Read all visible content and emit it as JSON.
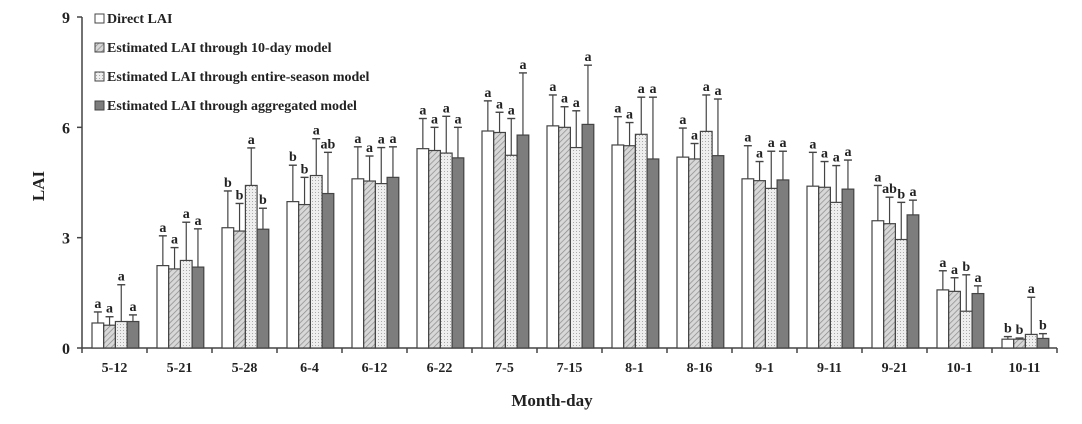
{
  "chart_data": {
    "type": "bar",
    "title": "",
    "xlabel": "Month-day",
    "ylabel": "LAI",
    "ylim": [
      0,
      9
    ],
    "yticks": [
      "0",
      "3",
      "6",
      "9"
    ],
    "grid": false,
    "legend_position": "top-left",
    "categories": [
      "5-12",
      "5-21",
      "5-28",
      "6-4",
      "6-12",
      "6-22",
      "7-5",
      "7-15",
      "8-1",
      "8-16",
      "9-1",
      "9-11",
      "9-21",
      "10-1",
      "10-11"
    ],
    "series": [
      {
        "name": "Direct LAI",
        "color": "#ffffff",
        "values": [
          0.68,
          2.24,
          3.27,
          3.98,
          4.6,
          5.42,
          5.9,
          6.04,
          5.52,
          5.19,
          4.6,
          4.4,
          3.46,
          1.58,
          0.24
        ],
        "error_upper": [
          0.98,
          3.05,
          4.27,
          4.97,
          5.47,
          6.24,
          6.72,
          6.88,
          6.29,
          5.98,
          5.5,
          5.32,
          4.42,
          2.1,
          0.31
        ],
        "letters": [
          "a",
          "a",
          "b",
          "b",
          "a",
          "a",
          "a",
          "a",
          "a",
          "a",
          "a",
          "a",
          "a",
          "a",
          "b"
        ]
      },
      {
        "name": "Estimated LAI through 10-day model",
        "color": "#c8c8c8",
        "values": [
          0.62,
          2.15,
          3.18,
          3.9,
          4.54,
          5.37,
          5.86,
          6.0,
          5.5,
          5.14,
          4.55,
          4.37,
          3.38,
          1.54,
          0.24
        ],
        "error_upper": [
          0.85,
          2.73,
          3.93,
          4.64,
          5.22,
          6.0,
          6.41,
          6.56,
          6.13,
          5.56,
          5.07,
          5.07,
          4.1,
          1.91,
          0.27
        ],
        "letters": [
          "a",
          "a",
          "b",
          "b",
          "a",
          "a",
          "a",
          "a",
          "a",
          "a",
          "a",
          "a",
          "ab",
          "a",
          "b"
        ]
      },
      {
        "name": "Estimated LAI through entire-season model",
        "color": "#e6e6e6",
        "values": [
          0.72,
          2.38,
          4.42,
          4.69,
          4.47,
          5.3,
          5.24,
          5.45,
          5.81,
          5.89,
          4.34,
          3.96,
          2.95,
          1.0,
          0.37
        ],
        "error_upper": [
          1.72,
          3.42,
          5.44,
          5.69,
          5.45,
          6.3,
          6.24,
          6.45,
          6.82,
          6.88,
          5.35,
          4.96,
          3.96,
          1.99,
          1.38
        ],
        "letters": [
          "a",
          "a",
          "a",
          "a",
          "a",
          "a",
          "a",
          "a",
          "a",
          "a",
          "a",
          "a",
          "b",
          "b",
          "a"
        ]
      },
      {
        "name": "Estimated LAI through aggregated model",
        "color": "#808080",
        "values": [
          0.72,
          2.2,
          3.23,
          4.2,
          4.64,
          5.17,
          5.79,
          6.08,
          5.14,
          5.23,
          4.57,
          4.32,
          3.62,
          1.48,
          0.26
        ],
        "error_upper": [
          0.9,
          3.24,
          3.8,
          5.32,
          5.47,
          6.0,
          7.48,
          7.69,
          6.82,
          6.77,
          5.35,
          5.11,
          4.02,
          1.69,
          0.39
        ],
        "letters": [
          "a",
          "a",
          "b",
          "ab",
          "a",
          "a",
          "a",
          "a",
          "a",
          "a",
          "a",
          "a",
          "a",
          "a",
          "b"
        ]
      }
    ]
  }
}
